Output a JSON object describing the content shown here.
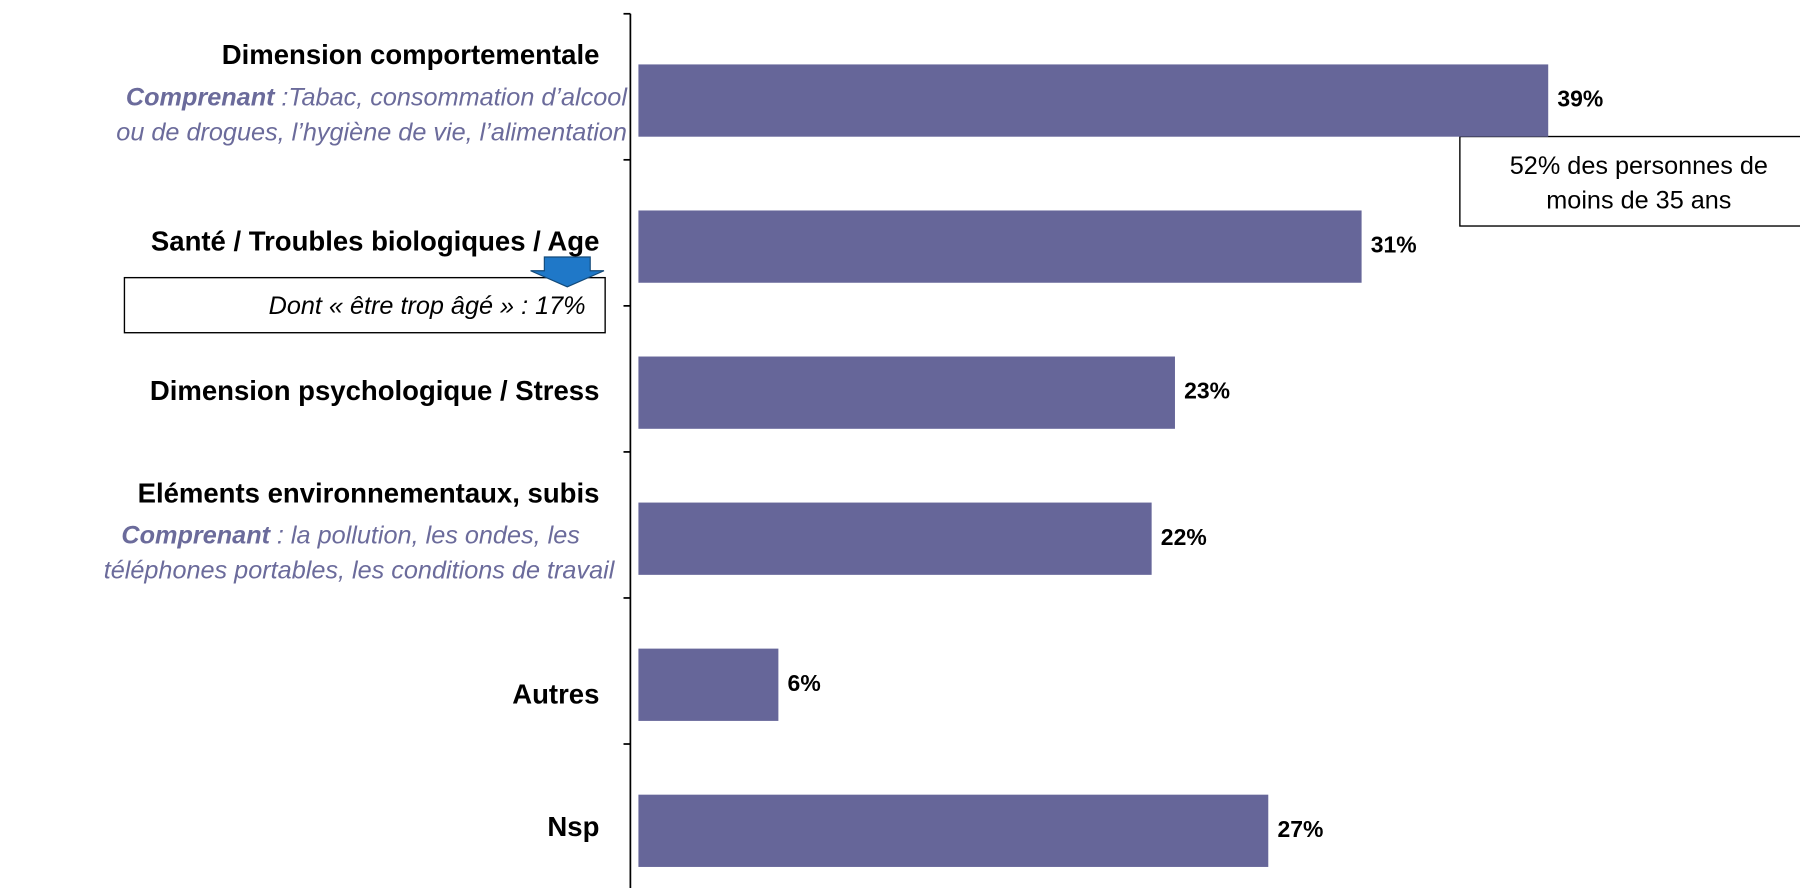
{
  "chart_data": {
    "type": "bar",
    "orientation": "horizontal",
    "color": "#666699",
    "categories": [
      "Dimension comportementale",
      "Santé / Troubles biologiques / Age",
      "Dimension psychologique / Stress",
      "Eléments environnementaux, subis",
      "Autres",
      "Nsp"
    ],
    "values": [
      39,
      31,
      23,
      22,
      6,
      27
    ],
    "value_labels": [
      "39%",
      "31%",
      "23%",
      "22%",
      "6%",
      "27%"
    ],
    "category_notes": [
      {
        "lead": "Comprenant",
        "rest": ":Tabac, consommation d’alcool",
        "line2": "ou de drogues, l’hygiène de vie, l’alimentation"
      },
      null,
      null,
      {
        "lead": "Comprenant",
        "rest": ": la pollution, les ondes, les",
        "line2": "téléphones portables,  les conditions de travail"
      },
      null,
      null
    ],
    "annotations": [
      {
        "lines": [
          "Dont « être trop âgé » : 17%"
        ]
      },
      {
        "lines": [
          "52% des personnes de",
          "moins de 35 ans"
        ]
      }
    ]
  }
}
